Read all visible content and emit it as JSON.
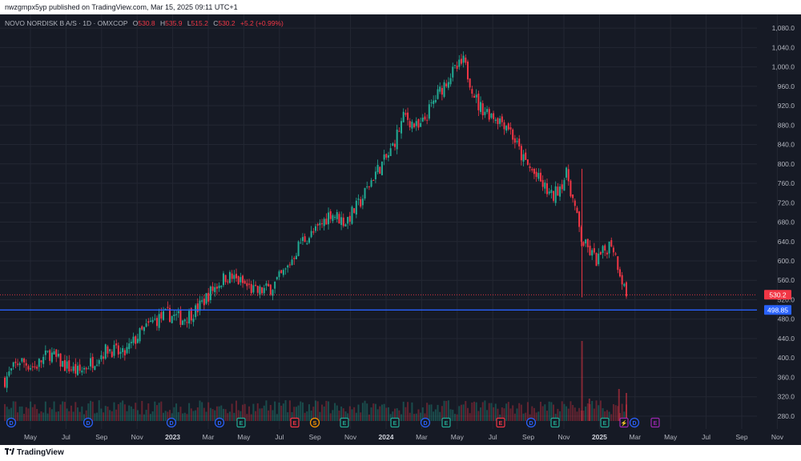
{
  "header": {
    "published": "nwzgmpx5yp published on TradingView.com, Mar 15, 2025 09:11 UTC+1"
  },
  "legend": {
    "symbol": "NOVO NORDISK B A/S · 1D · OMXCOP",
    "open_label": "O",
    "open": "530.8",
    "high_label": "H",
    "high": "535.9",
    "low_label": "L",
    "low": "515.2",
    "close_label": "C",
    "close": "530.2",
    "change": "+5.2 (+0.99%)"
  },
  "colors": {
    "background": "#161a25",
    "grid": "#232733",
    "up": "#22ab94",
    "down": "#f23645",
    "horizontal_line": "#2962ff",
    "text": "#b2b5be"
  },
  "price_labels": {
    "last": "530.2",
    "line": "498.85"
  },
  "footer": {
    "brand": "TradingView"
  },
  "chart_data": {
    "type": "candlestick",
    "y_ticks": [
      "1,080.0",
      "1,040.0",
      "1,000.0",
      "960.0",
      "920.0",
      "880.0",
      "840.0",
      "800.0",
      "760.0",
      "720.0",
      "680.0",
      "640.0",
      "600.0",
      "560.0",
      "520.0",
      "480.0",
      "440.0",
      "400.0",
      "360.0",
      "320.0",
      "280.0"
    ],
    "x_ticks": [
      "May",
      "Jul",
      "Sep",
      "Nov",
      "2023",
      "Mar",
      "May",
      "Jul",
      "Sep",
      "Nov",
      "2024",
      "Mar",
      "May",
      "Jul",
      "Sep",
      "Nov",
      "2025",
      "Mar",
      "May",
      "Jul",
      "Sep",
      "Nov"
    ],
    "ylim": [
      270,
      1095
    ],
    "last_price": 530.2,
    "horizontal_line": 498.85,
    "series_points": [
      {
        "t": 0,
        "v": 355
      },
      {
        "t": 2,
        "v": 395
      },
      {
        "t": 4,
        "v": 380
      },
      {
        "t": 6,
        "v": 410
      },
      {
        "t": 8,
        "v": 385
      },
      {
        "t": 10,
        "v": 370
      },
      {
        "t": 12,
        "v": 395
      },
      {
        "t": 14,
        "v": 420
      },
      {
        "t": 16,
        "v": 405
      },
      {
        "t": 18,
        "v": 445
      },
      {
        "t": 20,
        "v": 475
      },
      {
        "t": 22,
        "v": 490
      },
      {
        "t": 24,
        "v": 480
      },
      {
        "t": 26,
        "v": 500
      },
      {
        "t": 28,
        "v": 540
      },
      {
        "t": 30,
        "v": 570
      },
      {
        "t": 32,
        "v": 555
      },
      {
        "t": 34,
        "v": 535
      },
      {
        "t": 36,
        "v": 545
      },
      {
        "t": 38,
        "v": 580
      },
      {
        "t": 40,
        "v": 640
      },
      {
        "t": 42,
        "v": 660
      },
      {
        "t": 44,
        "v": 700
      },
      {
        "t": 46,
        "v": 680
      },
      {
        "t": 48,
        "v": 720
      },
      {
        "t": 50,
        "v": 780
      },
      {
        "t": 52,
        "v": 820
      },
      {
        "t": 54,
        "v": 900
      },
      {
        "t": 56,
        "v": 870
      },
      {
        "t": 58,
        "v": 930
      },
      {
        "t": 60,
        "v": 980
      },
      {
        "t": 62,
        "v": 1010
      },
      {
        "t": 64,
        "v": 920
      },
      {
        "t": 66,
        "v": 900
      },
      {
        "t": 68,
        "v": 880
      },
      {
        "t": 70,
        "v": 810
      },
      {
        "t": 72,
        "v": 770
      },
      {
        "t": 74,
        "v": 730
      },
      {
        "t": 76,
        "v": 780
      },
      {
        "t": 78,
        "v": 640
      },
      {
        "t": 80,
        "v": 600
      },
      {
        "t": 82,
        "v": 640
      },
      {
        "t": 84,
        "v": 530
      }
    ],
    "t_max": 84,
    "volume_spikes": [
      {
        "t": 78,
        "v": 1.0
      },
      {
        "t": 79,
        "v": 0.28
      },
      {
        "t": 83,
        "v": 0.4
      },
      {
        "t": 84,
        "v": 0.35
      }
    ],
    "event_markers": [
      {
        "label": "D",
        "color": "#2962ff"
      },
      {
        "label": "D",
        "color": "#2962ff"
      },
      {
        "label": "D",
        "color": "#2962ff"
      },
      {
        "label": "D",
        "color": "#2962ff"
      },
      {
        "label": "E",
        "color": "#22ab94"
      },
      {
        "label": "E",
        "color": "#f23645"
      },
      {
        "label": "S",
        "color": "#ff9800"
      },
      {
        "label": "E",
        "color": "#22ab94"
      },
      {
        "label": "E",
        "color": "#22ab94"
      },
      {
        "label": "D",
        "color": "#2962ff"
      },
      {
        "label": "E",
        "color": "#22ab94"
      },
      {
        "label": "E",
        "color": "#f23645"
      },
      {
        "label": "D",
        "color": "#2962ff"
      },
      {
        "label": "E",
        "color": "#22ab94"
      },
      {
        "label": "E",
        "color": "#22ab94"
      },
      {
        "label": "⚡",
        "color": "#9c27b0"
      },
      {
        "label": "D",
        "color": "#2962ff"
      },
      {
        "label": "E",
        "color": "#9c27b0"
      }
    ]
  }
}
